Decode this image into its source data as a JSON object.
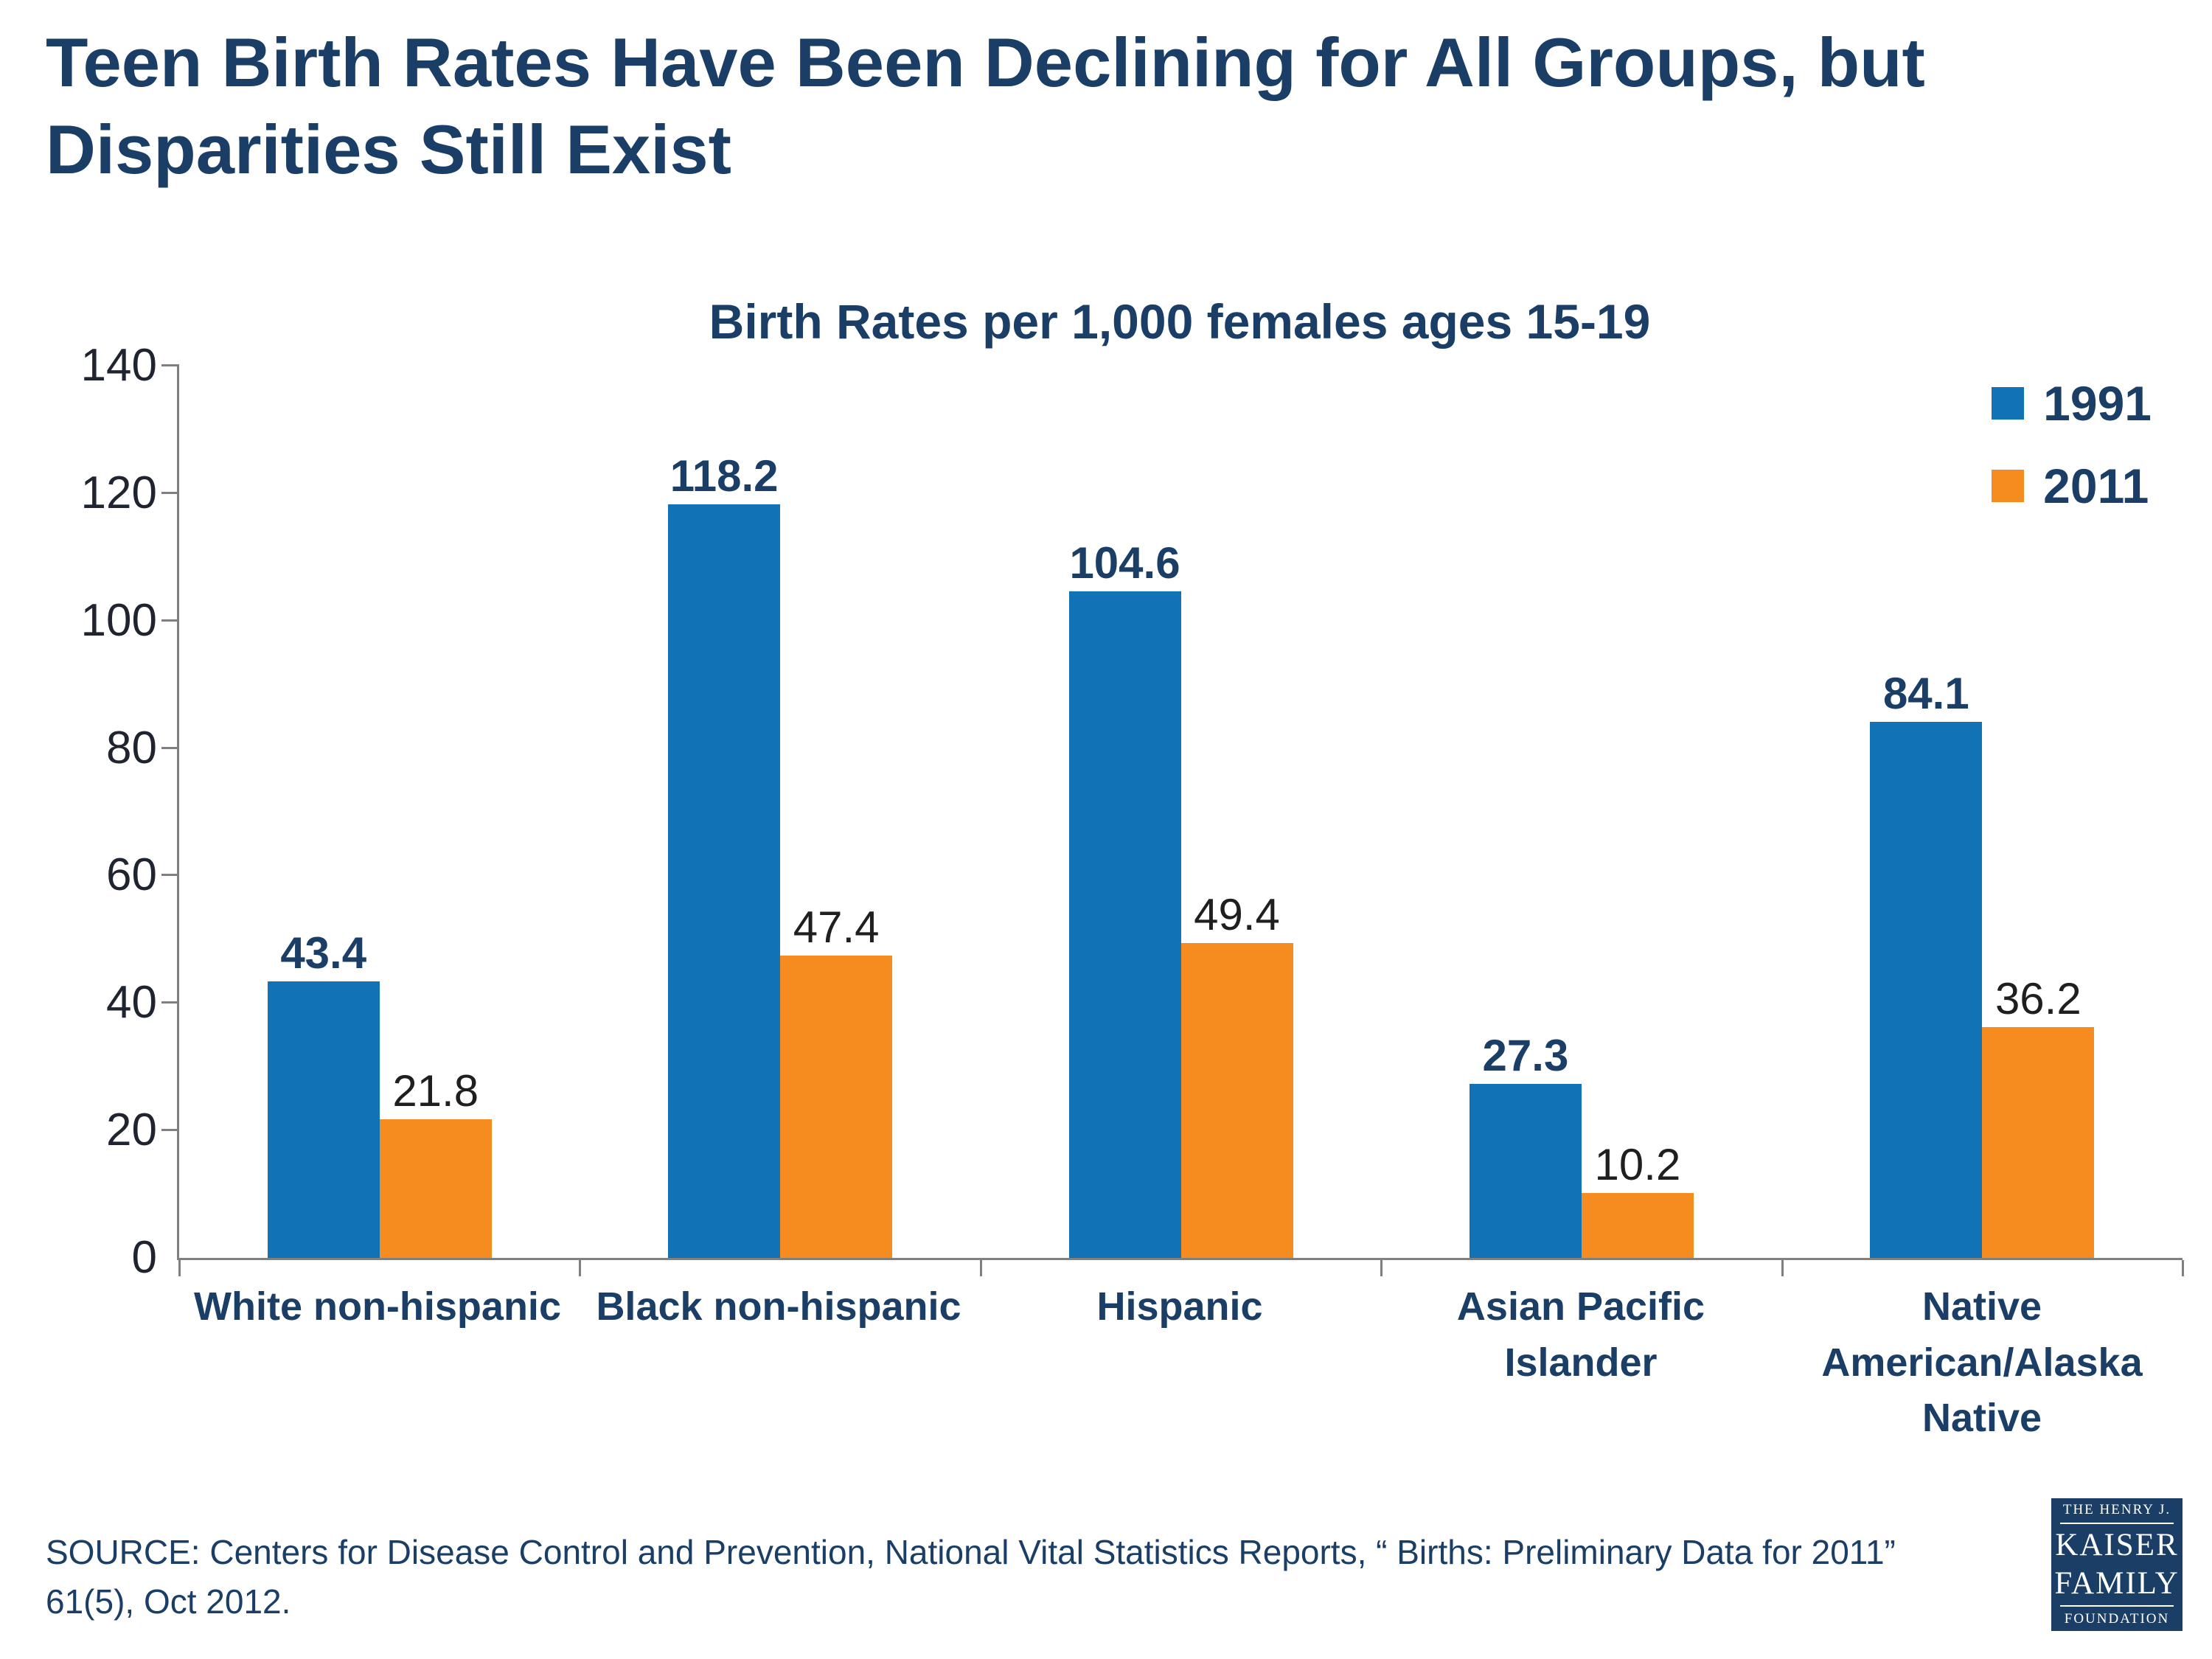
{
  "page": {
    "title": "Teen Birth Rates Have Been Declining for All Groups, but Disparities Still Exist",
    "source_line1": "SOURCE: Centers for Disease Control and Prevention, National Vital Statistics Reports, “ Births: Preliminary Data for 2011”",
    "source_line2": "61(5), Oct 2012."
  },
  "logo": {
    "top": "THE HENRY J.",
    "name1": "KAISER",
    "name2": "FAMILY",
    "bottom": "FOUNDATION"
  },
  "chart_data": {
    "type": "bar",
    "title": "Birth Rates per 1,000 females ages 15-19",
    "categories": [
      "White non-hispanic",
      "Black non-hispanic",
      "Hispanic",
      "Asian Pacific Islander",
      "Native American/Alaska Native"
    ],
    "series": [
      {
        "name": "1991",
        "color": "#1272b6",
        "values": [
          43.4,
          118.2,
          104.6,
          27.3,
          84.1
        ]
      },
      {
        "name": "2011",
        "color": "#f68b1f",
        "values": [
          21.8,
          47.4,
          49.4,
          10.2,
          36.2
        ]
      }
    ],
    "ylabel": "",
    "xlabel": "",
    "ylim": [
      0,
      140
    ],
    "yticks": [
      0,
      20,
      40,
      60,
      80,
      100,
      120,
      140
    ],
    "grid": false,
    "legend_position": "top-right"
  }
}
